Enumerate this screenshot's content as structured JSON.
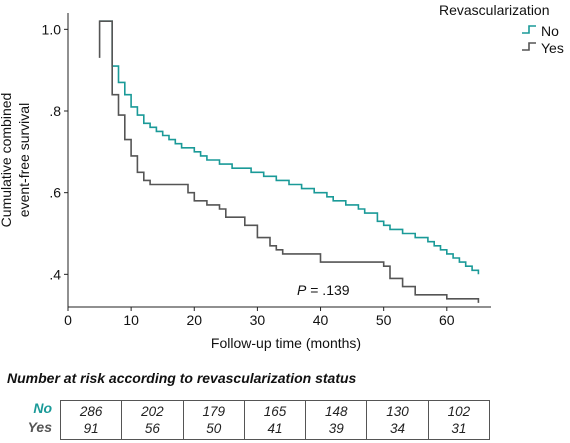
{
  "chart_data": {
    "type": "line",
    "step": true,
    "xlabel": "Follow-up time (months)",
    "ylabel_lines": [
      "Cumulative combined",
      "event-free survival"
    ],
    "x_ticks": [
      0,
      10,
      20,
      30,
      40,
      50,
      60
    ],
    "x_tick_labels": [
      "0",
      "10",
      "20",
      "30",
      "40",
      "50",
      "60"
    ],
    "y_ticks": [
      0.4,
      0.6,
      0.8,
      1.0
    ],
    "y_tick_labels": [
      ".4",
      ".6",
      ".8",
      "1.0"
    ],
    "xlim": [
      0,
      67
    ],
    "ylim": [
      0.32,
      1.04
    ],
    "grid": false,
    "legend": {
      "title": "Revascularization",
      "position": "top-right"
    },
    "annotation": {
      "p_label": "P",
      "p_value": "= .139"
    },
    "series": [
      {
        "name": "No",
        "color": "#1a9a98",
        "points": [
          [
            5,
            1.02
          ],
          [
            7,
            1.02
          ],
          [
            7,
            0.91
          ],
          [
            8,
            0.91
          ],
          [
            8,
            0.87
          ],
          [
            9,
            0.87
          ],
          [
            9,
            0.84
          ],
          [
            10,
            0.84
          ],
          [
            10,
            0.81
          ],
          [
            11,
            0.81
          ],
          [
            11,
            0.79
          ],
          [
            12,
            0.79
          ],
          [
            12,
            0.77
          ],
          [
            13,
            0.77
          ],
          [
            13,
            0.76
          ],
          [
            14,
            0.76
          ],
          [
            14,
            0.75
          ],
          [
            15,
            0.75
          ],
          [
            15,
            0.74
          ],
          [
            16,
            0.74
          ],
          [
            16,
            0.73
          ],
          [
            17,
            0.73
          ],
          [
            17,
            0.72
          ],
          [
            18,
            0.72
          ],
          [
            18,
            0.71
          ],
          [
            20,
            0.71
          ],
          [
            20,
            0.7
          ],
          [
            21,
            0.7
          ],
          [
            21,
            0.69
          ],
          [
            22,
            0.69
          ],
          [
            22,
            0.68
          ],
          [
            24,
            0.68
          ],
          [
            24,
            0.67
          ],
          [
            26,
            0.67
          ],
          [
            26,
            0.66
          ],
          [
            29,
            0.66
          ],
          [
            29,
            0.65
          ],
          [
            31,
            0.65
          ],
          [
            31,
            0.64
          ],
          [
            33,
            0.64
          ],
          [
            33,
            0.63
          ],
          [
            35,
            0.63
          ],
          [
            35,
            0.62
          ],
          [
            37,
            0.62
          ],
          [
            37,
            0.61
          ],
          [
            39,
            0.61
          ],
          [
            39,
            0.6
          ],
          [
            41,
            0.6
          ],
          [
            41,
            0.59
          ],
          [
            42,
            0.59
          ],
          [
            42,
            0.58
          ],
          [
            44,
            0.58
          ],
          [
            44,
            0.57
          ],
          [
            46,
            0.57
          ],
          [
            46,
            0.56
          ],
          [
            47,
            0.56
          ],
          [
            47,
            0.55
          ],
          [
            49,
            0.55
          ],
          [
            49,
            0.53
          ],
          [
            50,
            0.53
          ],
          [
            50,
            0.52
          ],
          [
            51,
            0.52
          ],
          [
            51,
            0.51
          ],
          [
            53,
            0.51
          ],
          [
            53,
            0.5
          ],
          [
            55,
            0.5
          ],
          [
            55,
            0.49
          ],
          [
            57,
            0.49
          ],
          [
            57,
            0.48
          ],
          [
            58,
            0.48
          ],
          [
            58,
            0.47
          ],
          [
            59,
            0.47
          ],
          [
            59,
            0.46
          ],
          [
            60,
            0.46
          ],
          [
            60,
            0.45
          ],
          [
            61,
            0.45
          ],
          [
            61,
            0.44
          ],
          [
            62,
            0.44
          ],
          [
            62,
            0.43
          ],
          [
            63,
            0.43
          ],
          [
            63,
            0.42
          ],
          [
            64,
            0.42
          ],
          [
            64,
            0.41
          ],
          [
            65,
            0.41
          ],
          [
            65,
            0.4
          ]
        ]
      },
      {
        "name": "Yes",
        "color": "#555555",
        "points": [
          [
            5,
            0.93
          ],
          [
            5,
            1.02
          ],
          [
            7,
            1.02
          ],
          [
            7,
            0.84
          ],
          [
            8,
            0.84
          ],
          [
            8,
            0.79
          ],
          [
            9,
            0.79
          ],
          [
            9,
            0.73
          ],
          [
            10,
            0.73
          ],
          [
            10,
            0.69
          ],
          [
            11,
            0.69
          ],
          [
            11,
            0.65
          ],
          [
            12,
            0.65
          ],
          [
            12,
            0.63
          ],
          [
            13,
            0.63
          ],
          [
            13,
            0.62
          ],
          [
            19,
            0.62
          ],
          [
            19,
            0.6
          ],
          [
            20,
            0.6
          ],
          [
            20,
            0.58
          ],
          [
            22,
            0.58
          ],
          [
            22,
            0.57
          ],
          [
            24,
            0.57
          ],
          [
            24,
            0.56
          ],
          [
            25,
            0.56
          ],
          [
            25,
            0.54
          ],
          [
            28,
            0.54
          ],
          [
            28,
            0.52
          ],
          [
            30,
            0.52
          ],
          [
            30,
            0.49
          ],
          [
            32,
            0.49
          ],
          [
            32,
            0.47
          ],
          [
            33,
            0.47
          ],
          [
            33,
            0.46
          ],
          [
            34,
            0.46
          ],
          [
            34,
            0.45
          ],
          [
            40,
            0.45
          ],
          [
            40,
            0.43
          ],
          [
            50,
            0.43
          ],
          [
            50,
            0.42
          ],
          [
            51,
            0.42
          ],
          [
            51,
            0.39
          ],
          [
            53,
            0.39
          ],
          [
            53,
            0.37
          ],
          [
            55,
            0.37
          ],
          [
            55,
            0.35
          ],
          [
            60,
            0.35
          ],
          [
            60,
            0.34
          ],
          [
            65,
            0.34
          ],
          [
            65,
            0.33
          ]
        ]
      }
    ]
  },
  "risk_table": {
    "title": "Number at risk according to revascularization status",
    "rows": [
      {
        "label": "No",
        "color": "#1a9a98",
        "values": [
          "286",
          "202",
          "179",
          "165",
          "148",
          "130",
          "102"
        ]
      },
      {
        "label": "Yes",
        "color": "#555555",
        "values": [
          "91",
          "56",
          "50",
          "41",
          "39",
          "34",
          "31"
        ]
      }
    ]
  }
}
